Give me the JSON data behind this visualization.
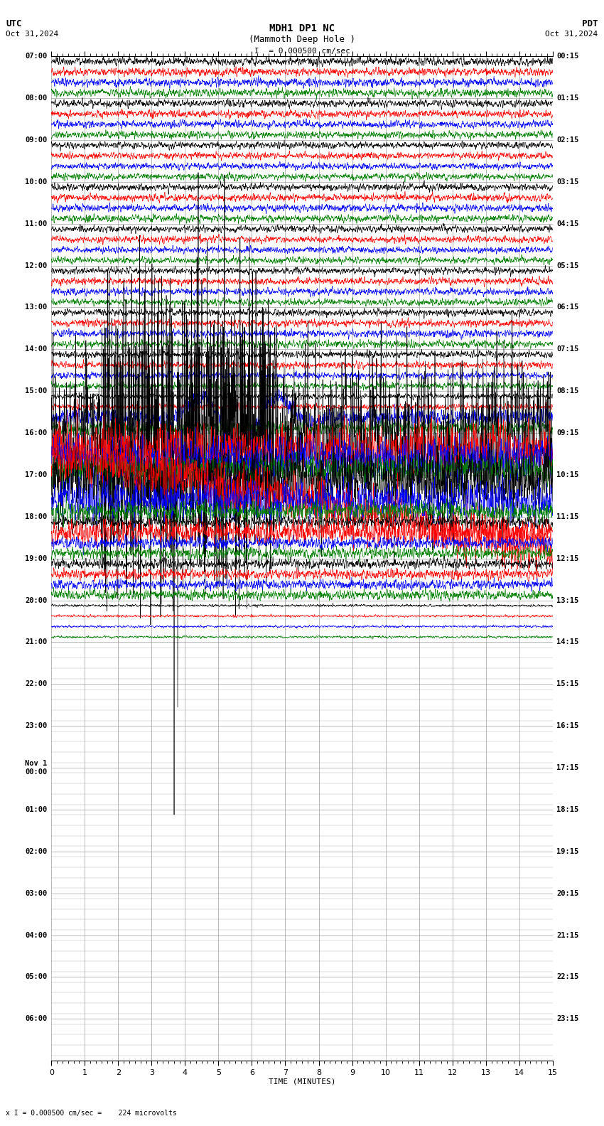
{
  "title_line1": "MDH1 DP1 NC",
  "title_line2": "(Mammoth Deep Hole )",
  "scale_text": "I  = 0.000500 cm/sec",
  "utc_label": "UTC",
  "utc_date": "Oct 31,2024",
  "pdt_label": "PDT",
  "pdt_date": "Oct 31,2024",
  "xlabel": "TIME (MINUTES)",
  "bottom_note": "x I = 0.000500 cm/sec =    224 microvolts",
  "xmin": 0,
  "xmax": 15,
  "num_rows": 24,
  "colors": [
    "black",
    "red",
    "blue",
    "green"
  ],
  "trace_amplitude": 0.3,
  "background_color": "white",
  "grid_color": "#888888",
  "fig_width": 8.5,
  "fig_height": 15.84,
  "left_labels_utc": [
    "07:00",
    "08:00",
    "09:00",
    "10:00",
    "11:00",
    "12:00",
    "13:00",
    "14:00",
    "15:00",
    "16:00",
    "17:00",
    "18:00",
    "19:00",
    "20:00",
    "21:00",
    "22:00",
    "23:00",
    "Nov 1\n00:00",
    "01:00",
    "02:00",
    "03:00",
    "04:00",
    "05:00",
    "06:00"
  ],
  "right_labels_pdt": [
    "00:15",
    "01:15",
    "02:15",
    "03:15",
    "04:15",
    "05:15",
    "06:15",
    "07:15",
    "08:15",
    "09:15",
    "10:15",
    "11:15",
    "12:15",
    "13:15",
    "14:15",
    "15:15",
    "16:15",
    "17:15",
    "18:15",
    "19:15",
    "20:15",
    "21:15",
    "22:15",
    "23:15"
  ],
  "noise_amplitude_scale": [
    1.0,
    0.9,
    0.8,
    0.9,
    0.8,
    0.85,
    0.9,
    0.85,
    0.7,
    1.8,
    2.5,
    1.5,
    1.2,
    0.3,
    0.0,
    0.0,
    0.0,
    0.0,
    0.0,
    0.0,
    0.0,
    0.0,
    0.0,
    0.0
  ],
  "special_color_amplitudes": {
    "8_blue": 3.0,
    "8_green": 2.5,
    "9_black": 4.0,
    "9_red": 3.5,
    "9_blue": 3.0,
    "9_green": 2.0,
    "10_black": 3.5,
    "10_red": 2.5,
    "10_blue": 2.0,
    "11_red": 2.0
  }
}
